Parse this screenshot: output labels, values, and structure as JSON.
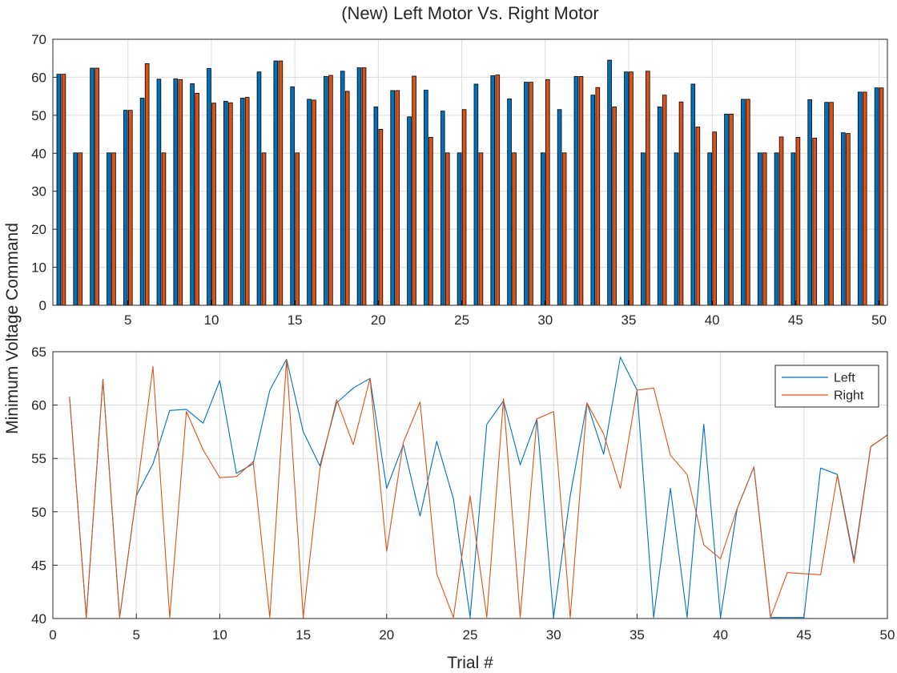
{
  "figure": {
    "title": "(New) Left Motor Vs. Right Motor",
    "ylabel": "Minimum Voltage Command",
    "xlabel": "Trial #"
  },
  "colors": {
    "left": "#0072BD",
    "right": "#D95319"
  },
  "chart_data": [
    {
      "type": "bar",
      "title": "(New) Left Motor Vs. Right Motor",
      "xlim": [
        0.5,
        50.5
      ],
      "ylim": [
        0,
        70
      ],
      "xticks": [
        5,
        10,
        15,
        20,
        25,
        30,
        35,
        40,
        45,
        50
      ],
      "yticks": [
        0,
        10,
        20,
        30,
        40,
        50,
        60,
        70
      ],
      "grid": true,
      "x": [
        1,
        2,
        3,
        4,
        5,
        6,
        7,
        8,
        9,
        10,
        11,
        12,
        13,
        14,
        15,
        16,
        17,
        18,
        19,
        20,
        21,
        22,
        23,
        24,
        25,
        26,
        27,
        28,
        29,
        30,
        31,
        32,
        33,
        34,
        35,
        36,
        37,
        38,
        39,
        40,
        41,
        42,
        43,
        44,
        45,
        46,
        47,
        48,
        49,
        50
      ],
      "series": [
        {
          "key": "left",
          "values": [
            60.8,
            40.1,
            62.4,
            40.1,
            51.3,
            54.5,
            59.5,
            59.6,
            58.3,
            62.3,
            53.7,
            54.5,
            61.4,
            64.3,
            57.5,
            54.2,
            60.2,
            61.6,
            62.5,
            52.2,
            56.5,
            49.6,
            56.6,
            51.1,
            40.1,
            58.2,
            60.4,
            54.3,
            58.7,
            40.1,
            51.5,
            60.2,
            55.3,
            64.5,
            61.4,
            40.1,
            52.2,
            40.1,
            58.2,
            40.1,
            50.3,
            54.2,
            40.1,
            40.1,
            40.1,
            54.1,
            53.4,
            45.4,
            56.1,
            57.2
          ]
        },
        {
          "key": "right",
          "values": [
            60.8,
            40.1,
            62.4,
            40.1,
            51.3,
            63.6,
            40.1,
            59.4,
            55.8,
            53.2,
            53.3,
            54.7,
            40.1,
            64.3,
            40.1,
            54.0,
            60.5,
            56.3,
            62.5,
            46.3,
            56.5,
            60.3,
            44.2,
            40.1,
            51.5,
            40.1,
            60.6,
            40.1,
            58.7,
            59.4,
            40.1,
            60.2,
            57.3,
            52.2,
            61.4,
            61.6,
            55.3,
            53.5,
            46.9,
            45.6,
            50.3,
            54.2,
            40.1,
            44.3,
            44.2,
            44.0,
            53.4,
            45.2,
            56.1,
            57.2
          ]
        }
      ]
    },
    {
      "type": "line",
      "xlabel": "Trial #",
      "xlim": [
        0,
        50
      ],
      "ylim": [
        40,
        65
      ],
      "xticks": [
        0,
        5,
        10,
        15,
        20,
        25,
        30,
        35,
        40,
        45,
        50
      ],
      "yticks": [
        40,
        45,
        50,
        55,
        60,
        65
      ],
      "grid": true,
      "legend": "top-right",
      "x": [
        1,
        2,
        3,
        4,
        5,
        6,
        7,
        8,
        9,
        10,
        11,
        12,
        13,
        14,
        15,
        16,
        17,
        18,
        19,
        20,
        21,
        22,
        23,
        24,
        25,
        26,
        27,
        28,
        29,
        30,
        31,
        32,
        33,
        34,
        35,
        36,
        37,
        38,
        39,
        40,
        41,
        42,
        43,
        44,
        45,
        46,
        47,
        48,
        49,
        50
      ],
      "series": [
        {
          "key": "left",
          "name": "Left",
          "values": [
            60.8,
            40.1,
            62.4,
            40.1,
            51.5,
            54.5,
            59.5,
            59.6,
            58.3,
            62.3,
            53.6,
            54.5,
            61.4,
            64.3,
            57.5,
            54.3,
            60.2,
            61.6,
            62.5,
            52.2,
            56.3,
            49.6,
            56.6,
            51.2,
            40.1,
            58.2,
            60.4,
            54.4,
            58.7,
            40.1,
            51.5,
            60.2,
            55.4,
            64.5,
            61.4,
            40.1,
            52.2,
            40.1,
            58.2,
            40.1,
            50.3,
            54.2,
            40.1,
            40.1,
            40.1,
            54.1,
            53.5,
            45.5,
            56.1,
            57.2
          ]
        },
        {
          "key": "right",
          "name": "Right",
          "values": [
            60.8,
            40.1,
            62.4,
            40.1,
            51.5,
            63.6,
            40.1,
            59.4,
            55.8,
            53.2,
            53.3,
            54.7,
            40.1,
            64.3,
            40.1,
            54.0,
            60.5,
            56.3,
            62.5,
            46.3,
            56.5,
            60.3,
            44.2,
            40.1,
            51.5,
            40.1,
            60.6,
            40.1,
            58.7,
            59.4,
            40.1,
            60.2,
            57.3,
            52.2,
            61.4,
            61.6,
            55.3,
            53.5,
            46.9,
            45.6,
            50.3,
            54.2,
            40.1,
            44.3,
            44.2,
            44.1,
            53.4,
            45.2,
            56.1,
            57.2
          ]
        }
      ]
    }
  ]
}
